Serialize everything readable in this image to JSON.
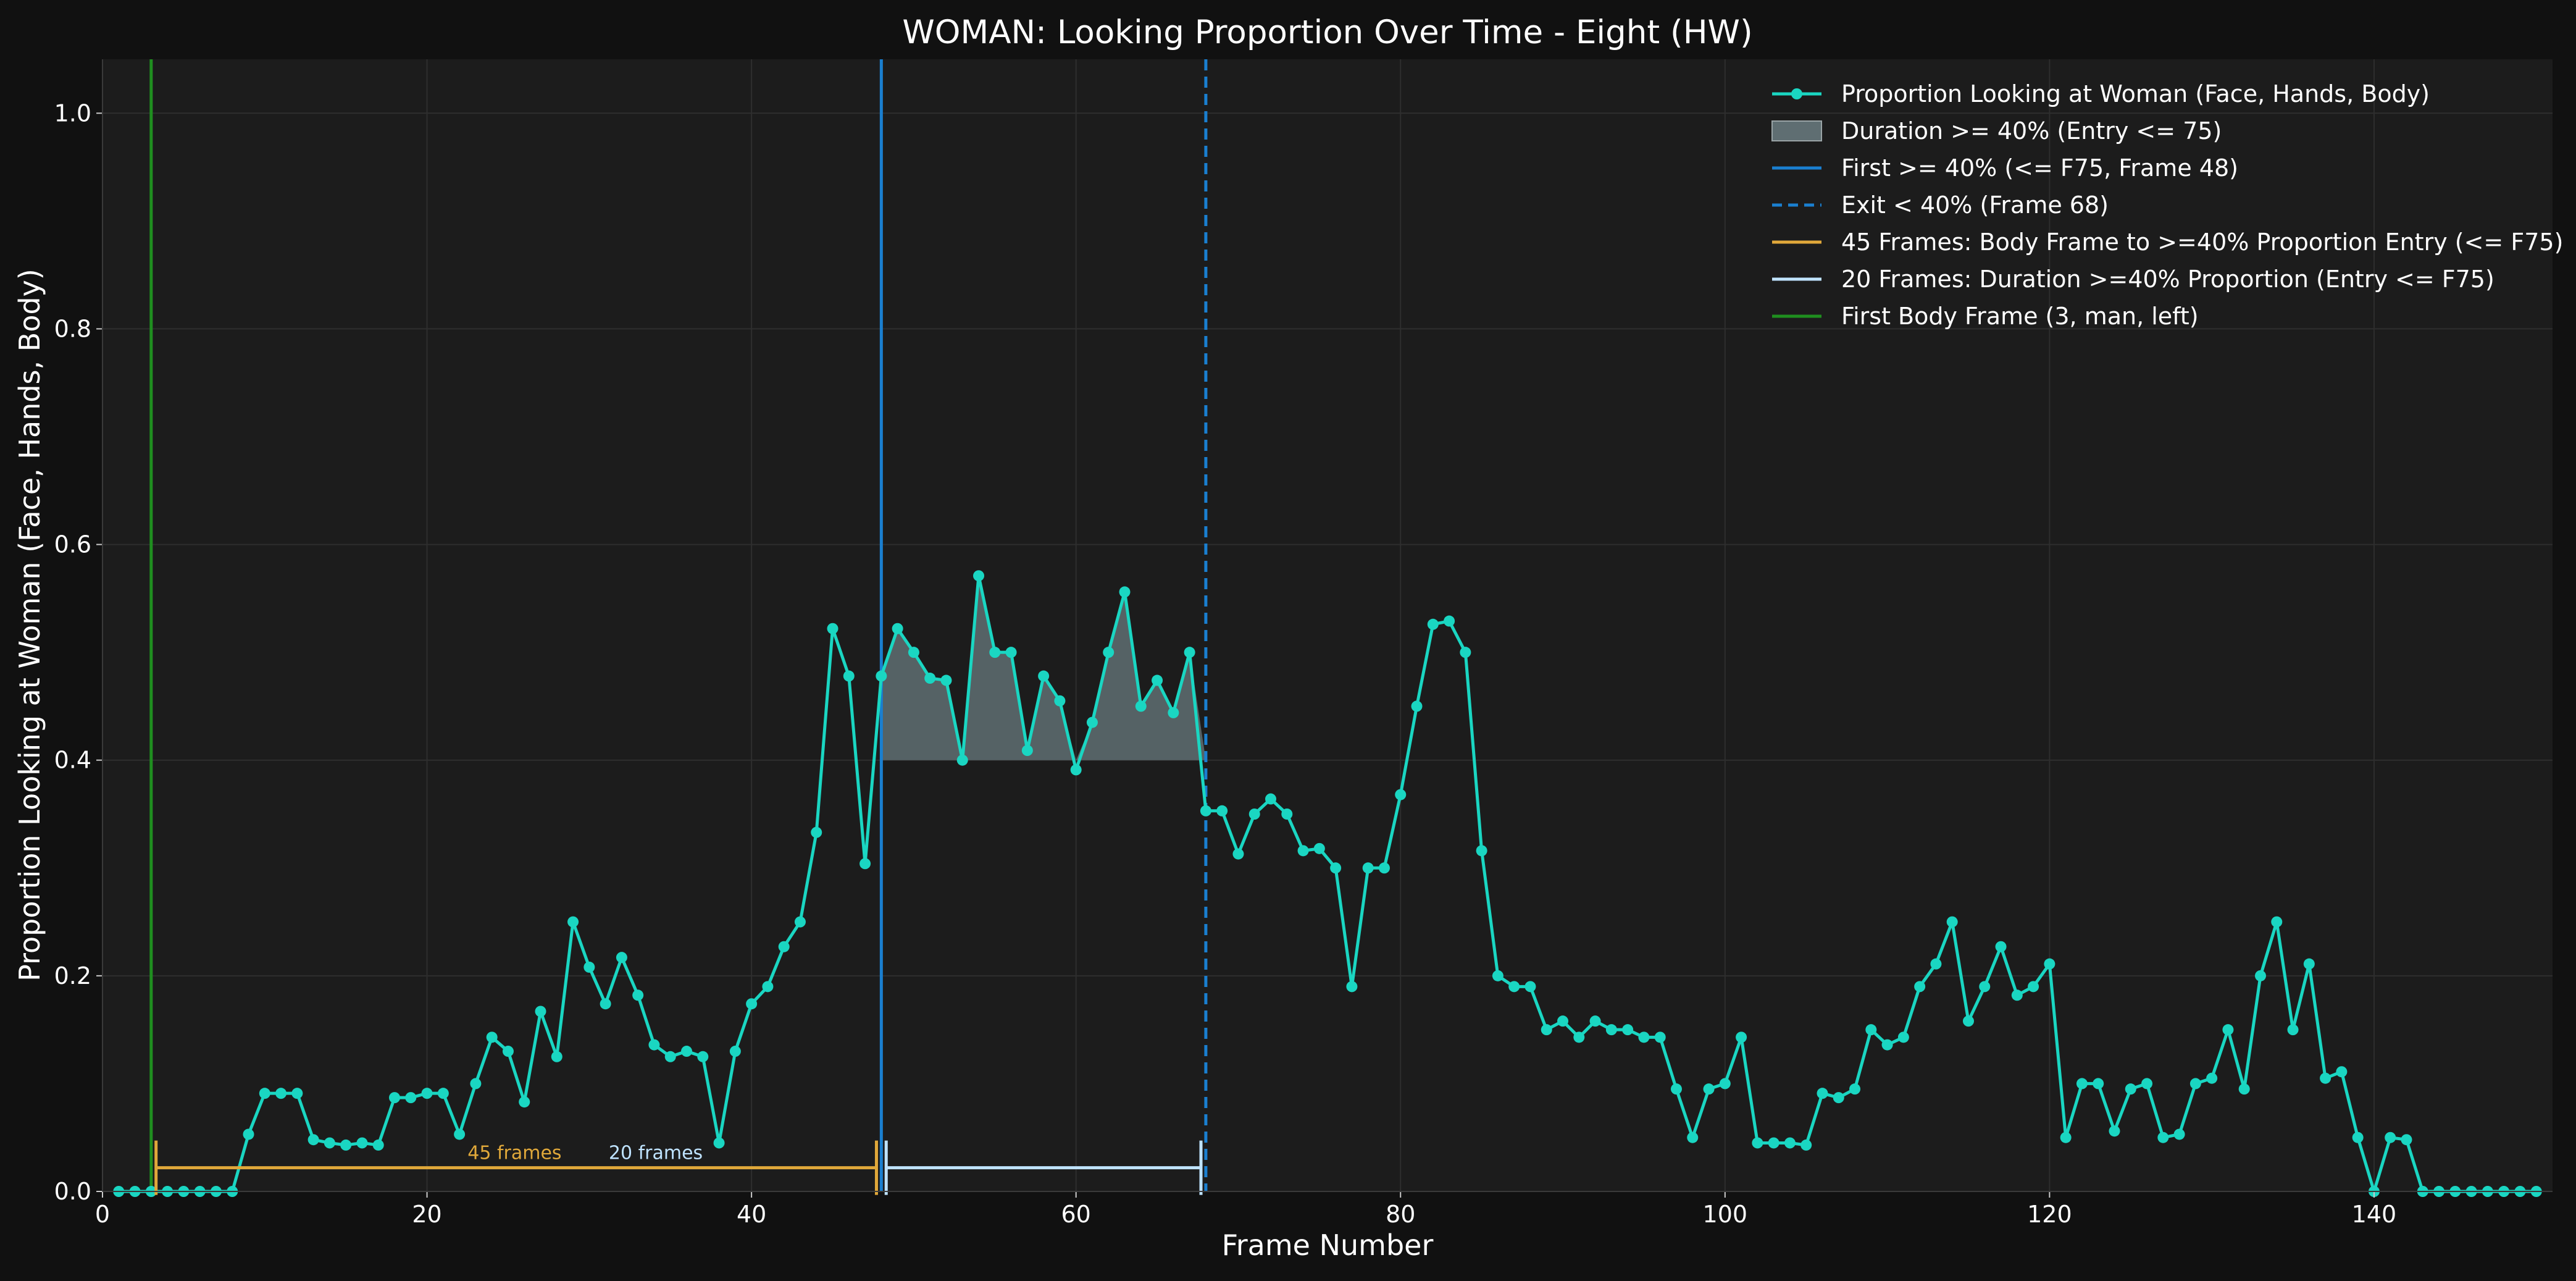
{
  "chart_data": {
    "type": "line",
    "title": "WOMAN: Looking Proportion Over Time - Eight (HW)",
    "xlabel": "Frame Number",
    "ylabel": "Proportion Looking at Woman (Face, Hands, Body)",
    "xlim": [
      0,
      151
    ],
    "ylim": [
      0,
      1.05
    ],
    "x_ticks": [
      0,
      20,
      40,
      60,
      80,
      100,
      120,
      140
    ],
    "y_ticks": [
      0.0,
      0.2,
      0.4,
      0.6,
      0.8,
      1.0
    ],
    "y_tick_labels": [
      "0.0",
      "0.2",
      "0.4",
      "0.6",
      "0.8",
      "1.0"
    ],
    "grid": true,
    "legend_position": "top-right",
    "threshold": 0.4,
    "colors": {
      "line": "#1ad6c2",
      "fill": "#5f6e72",
      "vline": "#1a7fd0",
      "green": "#1f8f1f",
      "orange": "#e0a83a",
      "lightblue": "#bfe3ff",
      "background": "#1c1c1c",
      "figure": "#111111"
    },
    "series": [
      {
        "name": "Proportion Looking at Woman (Face, Hands, Body)",
        "x": [
          1,
          2,
          3,
          4,
          5,
          6,
          7,
          8,
          9,
          10,
          11,
          12,
          13,
          14,
          15,
          16,
          17,
          18,
          19,
          20,
          21,
          22,
          23,
          24,
          25,
          26,
          27,
          28,
          29,
          30,
          31,
          32,
          33,
          34,
          35,
          36,
          37,
          38,
          39,
          40,
          41,
          42,
          43,
          44,
          45,
          46,
          47,
          48,
          49,
          50,
          51,
          52,
          53,
          54,
          55,
          56,
          57,
          58,
          59,
          60,
          61,
          62,
          63,
          64,
          65,
          66,
          67,
          68,
          69,
          70,
          71,
          72,
          73,
          74,
          75,
          76,
          77,
          78,
          79,
          80,
          81,
          82,
          83,
          84,
          85,
          86,
          87,
          88,
          89,
          90,
          91,
          92,
          93,
          94,
          95,
          96,
          97,
          98,
          99,
          100,
          101,
          102,
          103,
          104,
          105,
          106,
          107,
          108,
          109,
          110,
          111,
          112,
          113,
          114,
          115,
          116,
          117,
          118,
          119,
          120,
          121,
          122,
          123,
          124,
          125,
          126,
          127,
          128,
          129,
          130,
          131,
          132,
          133,
          134,
          135,
          136,
          137,
          138,
          139,
          140,
          141,
          142,
          143,
          144,
          145,
          146,
          147,
          148,
          149,
          150
        ],
        "y": [
          0,
          0,
          0,
          0,
          0,
          0,
          0,
          0,
          0.053,
          0.091,
          0.091,
          0.091,
          0.048,
          0.045,
          0.043,
          0.045,
          0.043,
          0.087,
          0.087,
          0.091,
          0.091,
          0.053,
          0.1,
          0.143,
          0.13,
          0.083,
          0.167,
          0.125,
          0.25,
          0.208,
          0.174,
          0.217,
          0.182,
          0.136,
          0.125,
          0.13,
          0.125,
          0.045,
          0.13,
          0.174,
          0.19,
          0.227,
          0.25,
          0.333,
          0.522,
          0.478,
          0.304,
          0.478,
          0.522,
          0.5,
          0.476,
          0.474,
          0.4,
          0.571,
          0.5,
          0.5,
          0.409,
          0.478,
          0.455,
          0.391,
          0.435,
          0.5,
          0.556,
          0.45,
          0.474,
          0.444,
          0.5,
          0.353,
          0.353,
          0.313,
          0.35,
          0.364,
          0.35,
          0.316,
          0.318,
          0.3,
          0.19,
          0.3,
          0.3,
          0.368,
          0.45,
          0.526,
          0.529,
          0.5,
          0.316,
          0.2,
          0.19,
          0.19,
          0.15,
          0.158,
          0.143,
          0.158,
          0.15,
          0.15,
          0.143,
          0.143,
          0.095,
          0.05,
          0.095,
          0.1,
          0.143,
          0.045,
          0.045,
          0.045,
          0.043,
          0.091,
          0.087,
          0.095,
          0.15,
          0.136,
          0.143,
          0.19,
          0.211,
          0.25,
          0.158,
          0.19,
          0.227,
          0.182,
          0.19,
          0.211,
          0.05,
          0.1,
          0.1,
          0.056,
          0.095,
          0.1,
          0.05,
          0.053,
          0.1,
          0.105,
          0.15,
          0.095,
          0.2,
          0.25,
          0.15,
          0.211,
          0.105,
          0.111,
          0.05,
          0,
          0.05,
          0.048,
          0,
          0,
          0,
          0,
          0,
          0,
          0,
          0
        ]
      }
    ],
    "legend": [
      {
        "label": "Proportion Looking at Woman (Face, Hands, Body)",
        "kind": "line-marker",
        "color": "#1ad6c2"
      },
      {
        "label": "Duration >= 40% (Entry <= 75)",
        "kind": "patch",
        "color": "#5f6e72"
      },
      {
        "label": "First >= 40% (<= F75, Frame 48)",
        "kind": "line",
        "color": "#1a7fd0"
      },
      {
        "label": "Exit < 40% (Frame 68)",
        "kind": "dashed",
        "color": "#1a7fd0"
      },
      {
        "label": "45 Frames: Body Frame to >=40% Proportion Entry (<= F75)",
        "kind": "line",
        "color": "#e0a83a"
      },
      {
        "label": "20 Frames: Duration >=40% Proportion (Entry <= F75)",
        "kind": "line",
        "color": "#bfe3ff"
      },
      {
        "label": "First Body Frame (3, man, left)",
        "kind": "line",
        "color": "#1f8f1f"
      }
    ],
    "vertical_lines": [
      {
        "x": 3,
        "style": "solid",
        "color": "#1f8f1f"
      },
      {
        "x": 48,
        "style": "solid",
        "color": "#1a7fd0"
      },
      {
        "x": 68,
        "style": "dashed",
        "color": "#1a7fd0"
      }
    ],
    "fill_region": {
      "x_start": 48,
      "x_end": 68,
      "baseline": 0.4
    },
    "span_annotations": [
      {
        "label": "45 frames",
        "x_start": 3.3,
        "x_end": 47.7,
        "y": 0.022,
        "color": "#e0a83a"
      },
      {
        "label": "20 frames",
        "x_start": 48.3,
        "x_end": 67.7,
        "y": 0.022,
        "color": "#bfe3ff"
      }
    ]
  }
}
